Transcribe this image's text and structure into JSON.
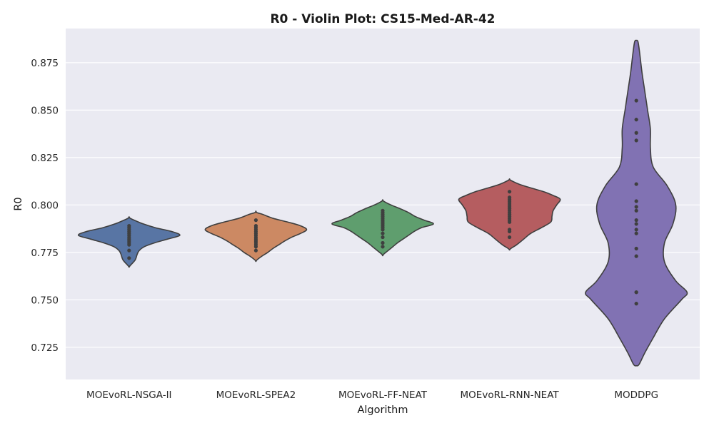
{
  "chart_data": {
    "type": "violin",
    "title": "R0 - Violin Plot: CS15-Med-AR-42",
    "xlabel": "Algorithm",
    "ylabel": "R0",
    "ylim": [
      0.708,
      0.893
    ],
    "yticks": [
      0.725,
      0.75,
      0.775,
      0.8,
      0.825,
      0.85,
      0.875
    ],
    "ytick_labels": [
      "0.725",
      "0.750",
      "0.775",
      "0.800",
      "0.825",
      "0.850",
      "0.875"
    ],
    "grid": true,
    "background": "#eaeaf2",
    "categories": [
      "MOEvoRL-NSGA-II",
      "MOEvoRL-SPEA2",
      "MOEvoRL-FF-NEAT",
      "MOEvoRL-RNN-NEAT",
      "MODDPG"
    ],
    "series": [
      {
        "category": "MOEvoRL-NSGA-II",
        "color": "#5875a4",
        "points": [
          0.789,
          0.788,
          0.787,
          0.786,
          0.785,
          0.784,
          0.783,
          0.782,
          0.781,
          0.78,
          0.779,
          0.776,
          0.772
        ],
        "density": [
          [
            0.768,
            1
          ],
          [
            0.771,
            6
          ],
          [
            0.774,
            8
          ],
          [
            0.776,
            10
          ],
          [
            0.778,
            15
          ],
          [
            0.78,
            25
          ],
          [
            0.782,
            38
          ],
          [
            0.784,
            50
          ],
          [
            0.786,
            42
          ],
          [
            0.788,
            26
          ],
          [
            0.79,
            14
          ],
          [
            0.792,
            5
          ],
          [
            0.793,
            1
          ]
        ]
      },
      {
        "category": "MOEvoRL-SPEA2",
        "color": "#cc8963",
        "points": [
          0.792,
          0.789,
          0.788,
          0.787,
          0.786,
          0.785,
          0.784,
          0.783,
          0.782,
          0.781,
          0.78,
          0.779,
          0.778,
          0.776
        ],
        "density": [
          [
            0.771,
            1
          ],
          [
            0.773,
            6
          ],
          [
            0.775,
            12
          ],
          [
            0.777,
            17
          ],
          [
            0.779,
            23
          ],
          [
            0.781,
            29
          ],
          [
            0.783,
            36
          ],
          [
            0.785,
            45
          ],
          [
            0.787,
            51
          ],
          [
            0.789,
            45
          ],
          [
            0.791,
            32
          ],
          [
            0.793,
            17
          ],
          [
            0.795,
            7
          ],
          [
            0.796,
            1
          ]
        ]
      },
      {
        "category": "MOEvoRL-FF-NEAT",
        "color": "#5f9e6e",
        "points": [
          0.797,
          0.796,
          0.795,
          0.794,
          0.793,
          0.792,
          0.791,
          0.79,
          0.789,
          0.788,
          0.787,
          0.785,
          0.783,
          0.78,
          0.778
        ],
        "density": [
          [
            0.774,
            1
          ],
          [
            0.776,
            6
          ],
          [
            0.778,
            11
          ],
          [
            0.78,
            16
          ],
          [
            0.782,
            22
          ],
          [
            0.784,
            28
          ],
          [
            0.786,
            34
          ],
          [
            0.788,
            42
          ],
          [
            0.79,
            55
          ],
          [
            0.792,
            45
          ],
          [
            0.794,
            35
          ],
          [
            0.796,
            28
          ],
          [
            0.798,
            19
          ],
          [
            0.8,
            9
          ],
          [
            0.802,
            1
          ]
        ]
      },
      {
        "category": "MOEvoRL-RNN-NEAT",
        "color": "#b55d60",
        "points": [
          0.807,
          0.804,
          0.803,
          0.802,
          0.801,
          0.8,
          0.799,
          0.798,
          0.797,
          0.796,
          0.795,
          0.794,
          0.793,
          0.792,
          0.791,
          0.787,
          0.786,
          0.783
        ],
        "density": [
          [
            0.777,
            1
          ],
          [
            0.779,
            6
          ],
          [
            0.782,
            12
          ],
          [
            0.785,
            18
          ],
          [
            0.788,
            27
          ],
          [
            0.791,
            35
          ],
          [
            0.794,
            36
          ],
          [
            0.797,
            37
          ],
          [
            0.8,
            40
          ],
          [
            0.803,
            43
          ],
          [
            0.805,
            37
          ],
          [
            0.807,
            29
          ],
          [
            0.809,
            18
          ],
          [
            0.811,
            8
          ],
          [
            0.813,
            1
          ]
        ]
      },
      {
        "category": "MODDPG",
        "color": "#8172b3",
        "points": [
          0.855,
          0.845,
          0.838,
          0.834,
          0.811,
          0.802,
          0.799,
          0.797,
          0.792,
          0.79,
          0.787,
          0.785,
          0.777,
          0.773,
          0.754,
          0.754,
          0.748
        ],
        "density": [
          [
            0.716,
            0.5
          ],
          [
            0.722,
            1.5
          ],
          [
            0.73,
            3
          ],
          [
            0.74,
            5
          ],
          [
            0.75,
            8
          ],
          [
            0.754,
            9
          ],
          [
            0.76,
            7
          ],
          [
            0.77,
            5
          ],
          [
            0.78,
            5
          ],
          [
            0.79,
            6.5
          ],
          [
            0.8,
            7
          ],
          [
            0.81,
            5.5
          ],
          [
            0.82,
            3
          ],
          [
            0.83,
            2.5
          ],
          [
            0.84,
            2.5
          ],
          [
            0.85,
            2
          ],
          [
            0.86,
            1.5
          ],
          [
            0.87,
            1
          ],
          [
            0.88,
            0.6
          ],
          [
            0.886,
            0.3
          ]
        ]
      }
    ]
  }
}
